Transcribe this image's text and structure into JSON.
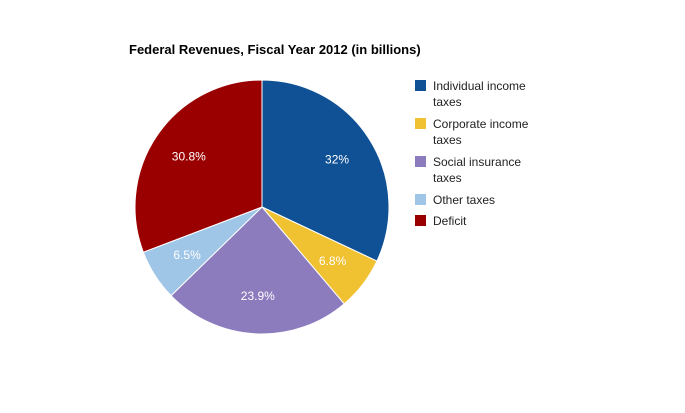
{
  "chart_data": {
    "type": "pie",
    "title": "Federal Revenues, Fiscal Year 2012 (in billions)",
    "slices": [
      {
        "label": "Individual income taxes",
        "value": 32.0,
        "value_label": "32%",
        "color": "#0f5194"
      },
      {
        "label": "Corporate income taxes",
        "value": 6.8,
        "value_label": "6.8%",
        "color": "#f0c131"
      },
      {
        "label": "Social insurance taxes",
        "value": 23.9,
        "value_label": "23.9%",
        "color": "#8c7bbd"
      },
      {
        "label": "Other taxes",
        "value": 6.5,
        "value_label": "6.5%",
        "color": "#9fc6e6"
      },
      {
        "label": "Deficit",
        "value": 30.8,
        "value_label": "30.8%",
        "color": "#9b0000"
      }
    ],
    "legend_position": "right",
    "start_angle": "top, clockwise"
  },
  "legend": {
    "items": [
      {
        "line1": "Individual income",
        "line2": "taxes"
      },
      {
        "line1": "Corporate income",
        "line2": "taxes"
      },
      {
        "line1": "Social insurance",
        "line2": "taxes"
      },
      {
        "line1": "Other taxes",
        "line2": ""
      },
      {
        "line1": "Deficit",
        "line2": ""
      }
    ]
  }
}
